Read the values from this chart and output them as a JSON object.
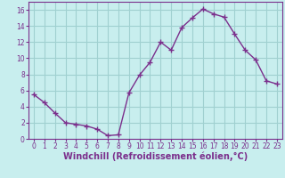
{
  "x": [
    0,
    1,
    2,
    3,
    4,
    5,
    6,
    7,
    8,
    9,
    10,
    11,
    12,
    13,
    14,
    15,
    16,
    17,
    18,
    19,
    20,
    21,
    22,
    23
  ],
  "y": [
    5.5,
    4.5,
    3.2,
    2.0,
    1.8,
    1.6,
    1.2,
    0.4,
    0.5,
    5.7,
    7.9,
    9.5,
    12.0,
    11.0,
    13.8,
    15.0,
    16.1,
    15.5,
    15.1,
    13.0,
    11.0,
    9.8,
    7.2,
    6.8
  ],
  "line_color": "#7B2F8C",
  "marker": "+",
  "marker_size": 4,
  "bg_color": "#C8EEEE",
  "grid_color": "#A0D0D0",
  "xlabel": "Windchill (Refroidissement éolien,°C)",
  "xlabel_fontsize": 7,
  "xlim": [
    -0.5,
    23.5
  ],
  "ylim": [
    0,
    17
  ],
  "yticks": [
    0,
    2,
    4,
    6,
    8,
    10,
    12,
    14,
    16
  ],
  "xticks": [
    0,
    1,
    2,
    3,
    4,
    5,
    6,
    7,
    8,
    9,
    10,
    11,
    12,
    13,
    14,
    15,
    16,
    17,
    18,
    19,
    20,
    21,
    22,
    23
  ],
  "tick_fontsize": 5.5,
  "tick_color": "#7B2F8C",
  "axis_color": "#7B2F8C",
  "linewidth": 1.0
}
